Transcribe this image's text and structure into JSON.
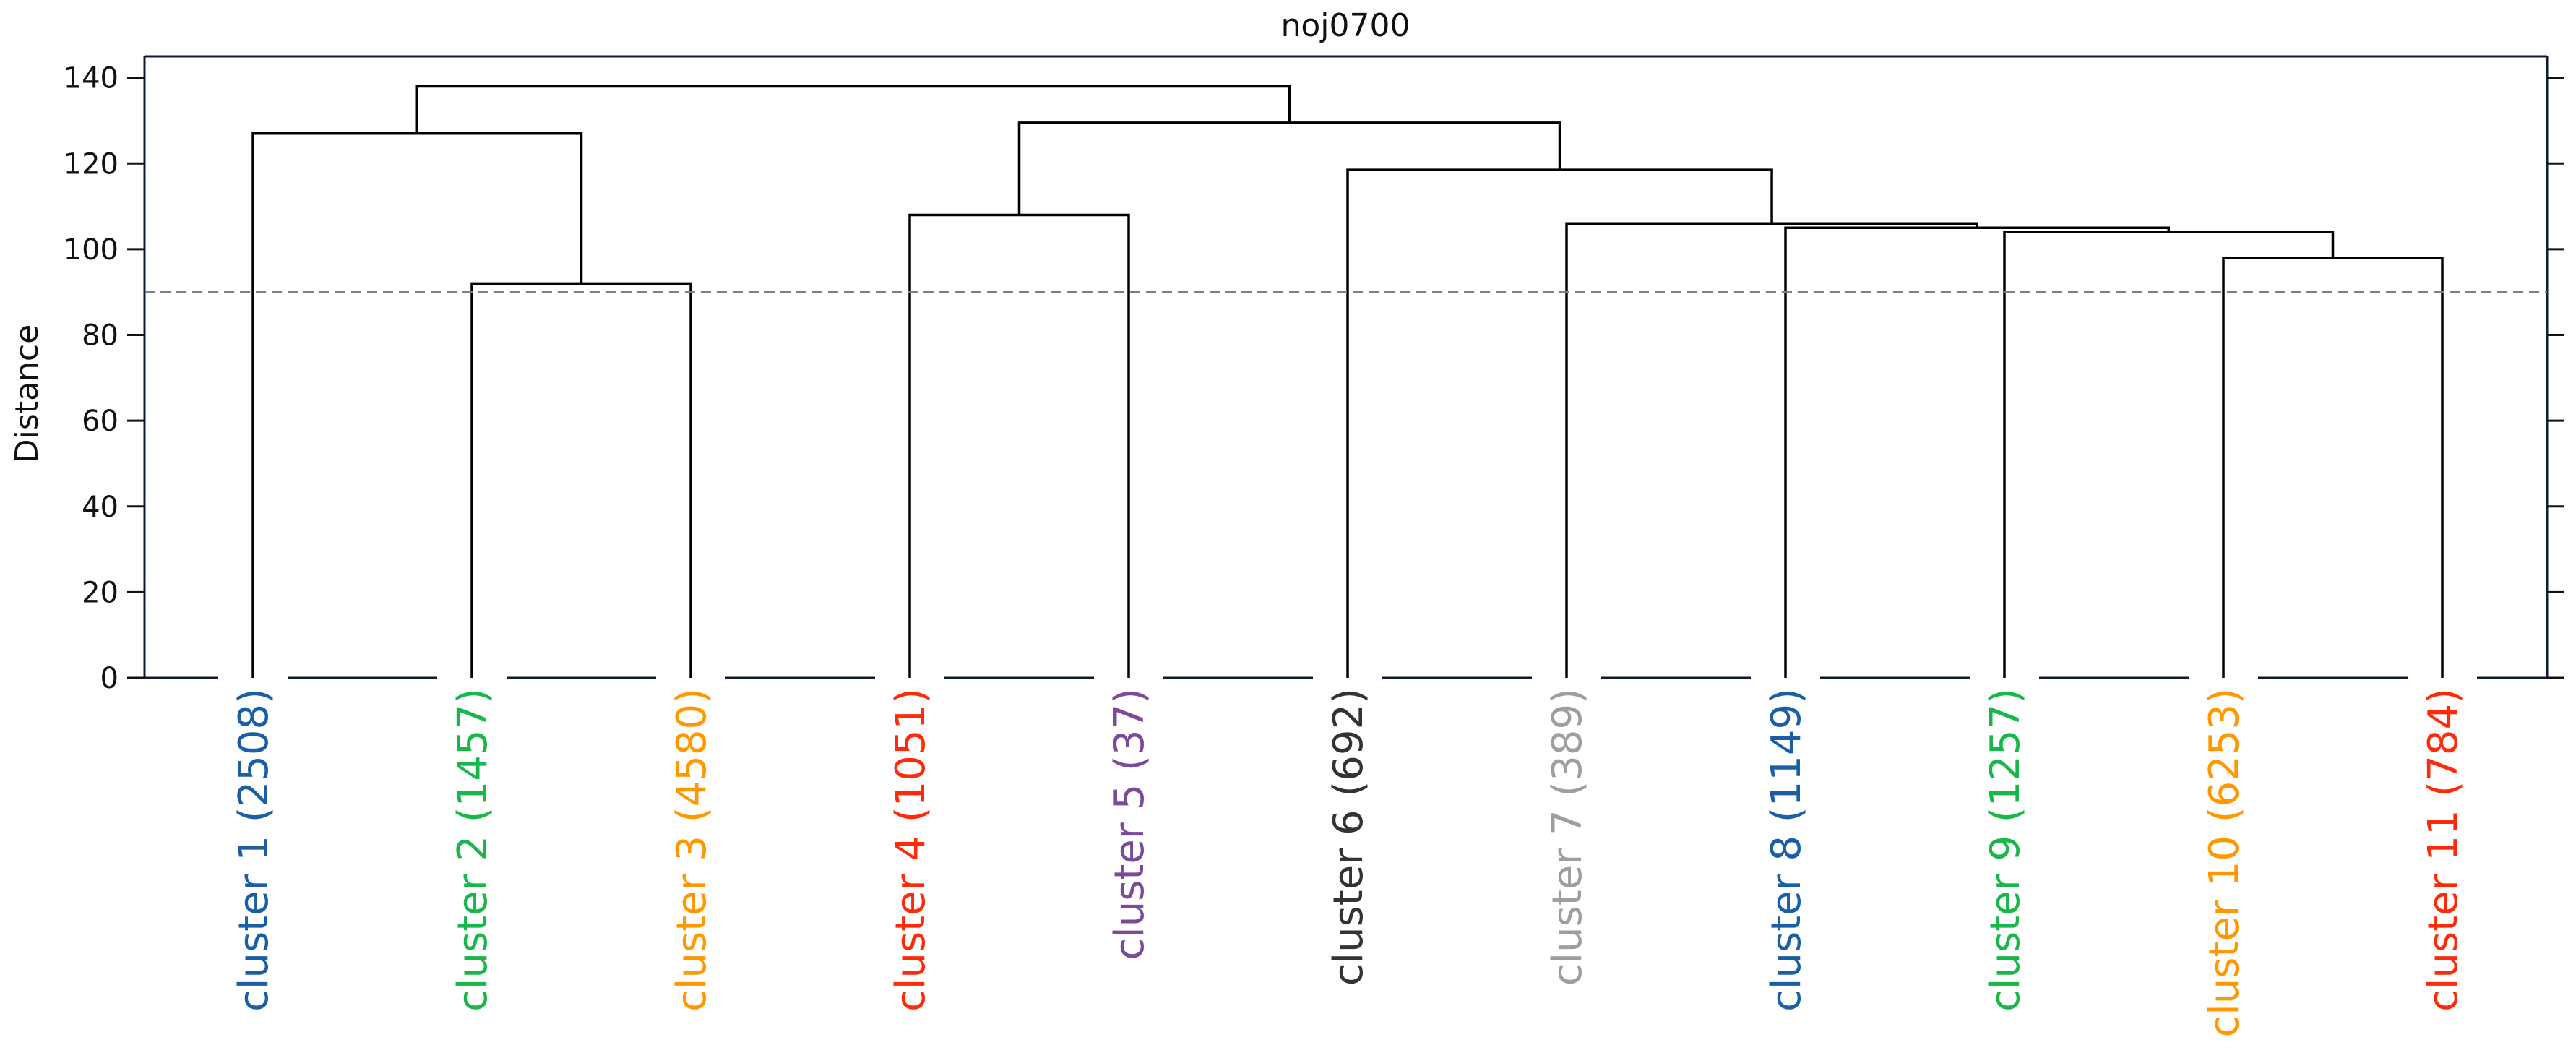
{
  "chart_data": {
    "type": "dendrogram",
    "title": "noj0700",
    "ylabel": "Distance",
    "ylim": [
      0,
      145
    ],
    "yticks": [
      0,
      20,
      40,
      60,
      80,
      100,
      120,
      140
    ],
    "cut_height": 90,
    "cut_line_color": "#808080",
    "link_color": "#000000",
    "leaves": [
      {
        "label": "cluster 1 (2508)",
        "color": "#1a5fa6"
      },
      {
        "label": "cluster 2 (1457)",
        "color": "#19b64a"
      },
      {
        "label": "cluster 3 (4580)",
        "color": "#ff9800"
      },
      {
        "label": "cluster 4 (1051)",
        "color": "#ff2a0a"
      },
      {
        "label": "cluster 5 (37)",
        "color": "#7b4a9c"
      },
      {
        "label": "cluster 6 (692)",
        "color": "#333333"
      },
      {
        "label": "cluster 7 (389)",
        "color": "#9e9e9e"
      },
      {
        "label": "cluster 8 (1149)",
        "color": "#1a5fa6"
      },
      {
        "label": "cluster 9 (1257)",
        "color": "#19b64a"
      },
      {
        "label": "cluster 10 (6253)",
        "color": "#ff9800"
      },
      {
        "label": "cluster 11 (784)",
        "color": "#ff2a0a"
      }
    ],
    "merges": [
      {
        "left": 1,
        "right": 2,
        "height": 92
      },
      {
        "left": 0,
        "right": 11,
        "height": 127
      },
      {
        "left": 3,
        "right": 4,
        "height": 108
      },
      {
        "left": 9,
        "right": 10,
        "height": 98
      },
      {
        "left": 8,
        "right": 14,
        "height": 104
      },
      {
        "left": 7,
        "right": 15,
        "height": 105
      },
      {
        "left": 6,
        "right": 16,
        "height": 106
      },
      {
        "left": 5,
        "right": 17,
        "height": 118.5
      },
      {
        "left": 13,
        "right": 18,
        "height": 129.5
      },
      {
        "left": 12,
        "right": 19,
        "height": 138
      }
    ]
  }
}
